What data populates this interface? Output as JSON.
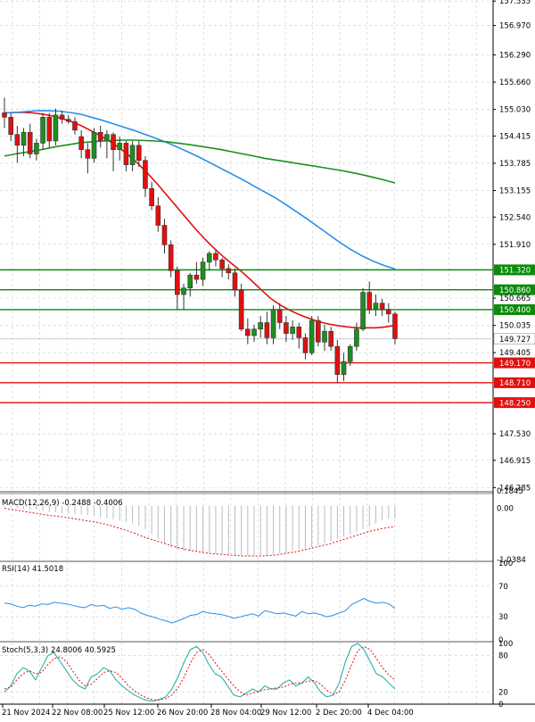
{
  "chart_data": {
    "type": "candlestick",
    "symbol_hint": "USDJPY H4",
    "price_axis": {
      "labels": [
        "157.535",
        "156.970",
        "156.290",
        "155.660",
        "155.030",
        "154.415",
        "153.785",
        "153.155",
        "152.540",
        "151.910",
        "151.320",
        "150.860",
        "150.665",
        "150.400",
        "150.035",
        "149.727",
        "149.405",
        "149.170",
        "148.710",
        "148.250",
        "147.530",
        "146.915",
        "146.285"
      ],
      "range": [
        146.21,
        157.56
      ]
    },
    "levels": [
      {
        "value": 151.32,
        "label": "151.320",
        "color": "#0b8a0b"
      },
      {
        "value": 150.86,
        "label": "150.860",
        "color": "#0b8a0b"
      },
      {
        "value": 150.4,
        "label": "150.400",
        "color": "#0b8a0b"
      },
      {
        "value": 149.17,
        "label": "149.170",
        "color": "#e01010"
      },
      {
        "value": 148.71,
        "label": "148.710",
        "color": "#e01010"
      },
      {
        "value": 148.25,
        "label": "148.250",
        "color": "#e01010"
      }
    ],
    "current_price": {
      "value": 149.727,
      "label": "149.727"
    },
    "time_labels": [
      "21 Nov 2024",
      "22 Nov 08:00",
      "25 Nov 12:00",
      "26 Nov 20:00",
      "28 Nov 04:00",
      "29 Nov 12:00",
      "2 Dec 20:00",
      "4 Dec 04:00"
    ],
    "candles": [
      {
        "o": 154.95,
        "h": 155.3,
        "l": 154.6,
        "c": 154.85
      },
      {
        "o": 154.85,
        "h": 154.95,
        "l": 154.3,
        "c": 154.45
      },
      {
        "o": 154.45,
        "h": 154.65,
        "l": 153.8,
        "c": 154.2
      },
      {
        "o": 154.2,
        "h": 154.6,
        "l": 153.95,
        "c": 154.5
      },
      {
        "o": 154.5,
        "h": 154.7,
        "l": 153.9,
        "c": 154.0
      },
      {
        "o": 154.0,
        "h": 154.35,
        "l": 153.85,
        "c": 154.25
      },
      {
        "o": 154.25,
        "h": 154.95,
        "l": 154.1,
        "c": 154.85
      },
      {
        "o": 154.85,
        "h": 154.95,
        "l": 154.15,
        "c": 154.3
      },
      {
        "o": 154.3,
        "h": 155.05,
        "l": 154.2,
        "c": 154.9
      },
      {
        "o": 154.9,
        "h": 155.0,
        "l": 154.7,
        "c": 154.8
      },
      {
        "o": 154.8,
        "h": 154.9,
        "l": 154.7,
        "c": 154.75
      },
      {
        "o": 154.75,
        "h": 154.85,
        "l": 154.45,
        "c": 154.55
      },
      {
        "o": 154.4,
        "h": 154.55,
        "l": 153.9,
        "c": 154.1
      },
      {
        "o": 154.1,
        "h": 154.25,
        "l": 153.55,
        "c": 153.9
      },
      {
        "o": 153.9,
        "h": 154.6,
        "l": 153.8,
        "c": 154.5
      },
      {
        "o": 154.5,
        "h": 154.65,
        "l": 154.15,
        "c": 154.3
      },
      {
        "o": 154.3,
        "h": 154.55,
        "l": 153.9,
        "c": 154.45
      },
      {
        "o": 154.45,
        "h": 154.5,
        "l": 153.6,
        "c": 154.1
      },
      {
        "o": 154.1,
        "h": 154.4,
        "l": 153.85,
        "c": 154.25
      },
      {
        "o": 154.25,
        "h": 154.3,
        "l": 153.6,
        "c": 153.75
      },
      {
        "o": 153.75,
        "h": 154.3,
        "l": 153.6,
        "c": 154.2
      },
      {
        "o": 154.2,
        "h": 154.3,
        "l": 153.7,
        "c": 153.85
      },
      {
        "o": 153.85,
        "h": 153.95,
        "l": 153.0,
        "c": 153.2
      },
      {
        "o": 153.2,
        "h": 153.35,
        "l": 152.7,
        "c": 152.8
      },
      {
        "o": 152.8,
        "h": 153.0,
        "l": 152.2,
        "c": 152.35
      },
      {
        "o": 152.35,
        "h": 152.5,
        "l": 151.7,
        "c": 151.9
      },
      {
        "o": 151.9,
        "h": 152.0,
        "l": 151.15,
        "c": 151.3
      },
      {
        "o": 151.3,
        "h": 151.4,
        "l": 150.4,
        "c": 150.75
      },
      {
        "o": 150.75,
        "h": 151.0,
        "l": 150.4,
        "c": 150.9
      },
      {
        "o": 150.9,
        "h": 151.25,
        "l": 150.7,
        "c": 151.2
      },
      {
        "o": 151.2,
        "h": 151.5,
        "l": 151.0,
        "c": 151.1
      },
      {
        "o": 151.1,
        "h": 151.6,
        "l": 150.95,
        "c": 151.5
      },
      {
        "o": 151.5,
        "h": 151.75,
        "l": 151.3,
        "c": 151.7
      },
      {
        "o": 151.7,
        "h": 151.8,
        "l": 151.4,
        "c": 151.55
      },
      {
        "o": 151.55,
        "h": 151.6,
        "l": 151.15,
        "c": 151.35
      },
      {
        "o": 151.35,
        "h": 151.45,
        "l": 151.1,
        "c": 151.25
      },
      {
        "o": 151.25,
        "h": 151.35,
        "l": 150.7,
        "c": 150.85
      },
      {
        "o": 150.85,
        "h": 151.0,
        "l": 149.9,
        "c": 149.95
      },
      {
        "o": 149.95,
        "h": 150.2,
        "l": 149.6,
        "c": 149.8
      },
      {
        "o": 149.8,
        "h": 150.05,
        "l": 149.65,
        "c": 149.95
      },
      {
        "o": 149.95,
        "h": 150.25,
        "l": 149.75,
        "c": 150.1
      },
      {
        "o": 150.1,
        "h": 150.35,
        "l": 149.6,
        "c": 149.75
      },
      {
        "o": 149.75,
        "h": 150.5,
        "l": 149.6,
        "c": 150.4
      },
      {
        "o": 150.4,
        "h": 150.55,
        "l": 149.95,
        "c": 150.1
      },
      {
        "o": 150.1,
        "h": 150.25,
        "l": 149.65,
        "c": 149.85
      },
      {
        "o": 149.85,
        "h": 150.15,
        "l": 149.7,
        "c": 150.0
      },
      {
        "o": 150.0,
        "h": 150.1,
        "l": 149.5,
        "c": 149.75
      },
      {
        "o": 149.75,
        "h": 149.85,
        "l": 149.25,
        "c": 149.4
      },
      {
        "o": 149.4,
        "h": 150.25,
        "l": 149.35,
        "c": 150.15
      },
      {
        "o": 150.15,
        "h": 150.25,
        "l": 149.55,
        "c": 149.65
      },
      {
        "o": 149.65,
        "h": 150.05,
        "l": 149.45,
        "c": 149.9
      },
      {
        "o": 149.9,
        "h": 150.0,
        "l": 149.45,
        "c": 149.55
      },
      {
        "o": 149.55,
        "h": 149.7,
        "l": 148.7,
        "c": 148.9
      },
      {
        "o": 148.9,
        "h": 149.4,
        "l": 148.75,
        "c": 149.2
      },
      {
        "o": 149.2,
        "h": 149.6,
        "l": 149.1,
        "c": 149.55
      },
      {
        "o": 149.55,
        "h": 150.1,
        "l": 149.45,
        "c": 149.95
      },
      {
        "o": 149.95,
        "h": 150.9,
        "l": 149.9,
        "c": 150.8
      },
      {
        "o": 150.8,
        "h": 151.05,
        "l": 150.3,
        "c": 150.4
      },
      {
        "o": 150.4,
        "h": 150.75,
        "l": 150.25,
        "c": 150.55
      },
      {
        "o": 150.55,
        "h": 150.65,
        "l": 150.25,
        "c": 150.4
      },
      {
        "o": 150.4,
        "h": 150.55,
        "l": 150.1,
        "c": 150.3
      },
      {
        "o": 150.3,
        "h": 150.35,
        "l": 149.6,
        "c": 149.73
      }
    ],
    "moving_averages": [
      {
        "color": "#e01010",
        "values": [
          154.95,
          154.96,
          154.96,
          154.95,
          154.92,
          154.88,
          154.82,
          154.75,
          154.66,
          154.55,
          154.43,
          154.3,
          154.15,
          153.98,
          153.78,
          153.56,
          153.32,
          153.06,
          152.8,
          152.54,
          152.28,
          152.04,
          151.82,
          151.62,
          151.44,
          151.26,
          151.06,
          150.85,
          150.65,
          150.5,
          150.38,
          150.28,
          150.2,
          150.12,
          150.07,
          150.03,
          150.0,
          149.98,
          149.98,
          149.98,
          150.0,
          150.04
        ]
      },
      {
        "color": "#2a8fe8",
        "values": [
          154.95,
          154.96,
          154.98,
          155.0,
          155.0,
          154.99,
          154.96,
          154.92,
          154.85,
          154.78,
          154.7,
          154.62,
          154.54,
          154.45,
          154.36,
          154.26,
          154.15,
          154.04,
          153.92,
          153.79,
          153.66,
          153.53,
          153.4,
          153.26,
          153.12,
          152.98,
          152.82,
          152.65,
          152.48,
          152.3,
          152.12,
          151.94,
          151.78,
          151.64,
          151.52,
          151.42,
          151.34
        ]
      },
      {
        "color": "#1d8f1d",
        "values": [
          153.95,
          154.0,
          154.04,
          154.08,
          154.13,
          154.18,
          154.22,
          154.26,
          154.28,
          154.3,
          154.31,
          154.32,
          154.32,
          154.31,
          154.3,
          154.28,
          154.25,
          154.22,
          154.18,
          154.14,
          154.1,
          154.05,
          154.0,
          153.95,
          153.9,
          153.86,
          153.82,
          153.78,
          153.74,
          153.7,
          153.66,
          153.62,
          153.57,
          153.52,
          153.46,
          153.4,
          153.33
        ]
      }
    ],
    "macd": {
      "label": "MACD(12,26,9) -0.2488 -0.4006",
      "scale_labels": [
        "0.1845",
        "0.00",
        "-1.0384"
      ],
      "range": [
        -1.0384,
        0.1845
      ],
      "hist": [
        -0.02,
        -0.04,
        -0.05,
        -0.06,
        -0.07,
        -0.08,
        -0.1,
        -0.12,
        -0.13,
        -0.14,
        -0.15,
        -0.16,
        -0.17,
        -0.18,
        -0.2,
        -0.22,
        -0.24,
        -0.26,
        -0.28,
        -0.31,
        -0.34,
        -0.38,
        -0.45,
        -0.55,
        -0.64,
        -0.72,
        -0.8,
        -0.85,
        -0.87,
        -0.88,
        -0.89,
        -0.9,
        -0.91,
        -0.92,
        -0.93,
        -0.94,
        -0.95,
        -0.96,
        -0.96,
        -0.96,
        -0.96,
        -0.95,
        -0.94,
        -0.92,
        -0.9,
        -0.87,
        -0.84,
        -0.82,
        -0.8,
        -0.76,
        -0.72,
        -0.68,
        -0.64,
        -0.6,
        -0.55,
        -0.5,
        -0.45,
        -0.4,
        -0.34,
        -0.28,
        -0.25,
        -0.25
      ],
      "signal": [
        -0.05,
        -0.07,
        -0.09,
        -0.11,
        -0.13,
        -0.15,
        -0.17,
        -0.19,
        -0.2,
        -0.22,
        -0.24,
        -0.26,
        -0.28,
        -0.3,
        -0.32,
        -0.35,
        -0.38,
        -0.42,
        -0.46,
        -0.5,
        -0.55,
        -0.6,
        -0.64,
        -0.68,
        -0.72,
        -0.76,
        -0.8,
        -0.83,
        -0.86,
        -0.88,
        -0.9,
        -0.92,
        -0.93,
        -0.94,
        -0.95,
        -0.96,
        -0.97,
        -0.97,
        -0.97,
        -0.97,
        -0.96,
        -0.95,
        -0.93,
        -0.91,
        -0.89,
        -0.86,
        -0.83,
        -0.8,
        -0.77,
        -0.74,
        -0.7,
        -0.66,
        -0.62,
        -0.58,
        -0.54,
        -0.5,
        -0.47,
        -0.44,
        -0.42,
        -0.4
      ]
    },
    "rsi": {
      "label": "RSI(14) 41.5018",
      "scale_labels": [
        "100",
        "70",
        "30",
        "0"
      ],
      "values": [
        48,
        47,
        44,
        42,
        45,
        44,
        47,
        46,
        49,
        48,
        47,
        45,
        43,
        42,
        46,
        44,
        45,
        41,
        43,
        40,
        42,
        40,
        35,
        32,
        30,
        27,
        25,
        22,
        25,
        28,
        32,
        33,
        37,
        35,
        34,
        33,
        31,
        28,
        30,
        32,
        34,
        31,
        38,
        36,
        34,
        35,
        33,
        31,
        37,
        34,
        35,
        33,
        30,
        32,
        35,
        38,
        46,
        50,
        54,
        50,
        48,
        49,
        47,
        41
      ]
    },
    "stochastic": {
      "label": "Stoch(5,3,3) 24.8006 40.5925",
      "scale_labels": [
        "100",
        "80",
        "20",
        "0"
      ],
      "k": [
        20,
        30,
        50,
        60,
        55,
        40,
        60,
        80,
        85,
        70,
        55,
        40,
        30,
        25,
        45,
        50,
        60,
        55,
        40,
        30,
        22,
        15,
        10,
        6,
        5,
        8,
        12,
        25,
        45,
        70,
        90,
        95,
        85,
        65,
        50,
        45,
        30,
        15,
        12,
        18,
        25,
        20,
        30,
        25,
        25,
        35,
        40,
        30,
        35,
        45,
        35,
        20,
        12,
        15,
        35,
        70,
        95,
        100,
        90,
        70,
        50,
        45,
        35,
        25
      ],
      "d": [
        25,
        28,
        40,
        50,
        55,
        50,
        52,
        65,
        75,
        78,
        70,
        55,
        40,
        30,
        33,
        42,
        52,
        55,
        52,
        42,
        30,
        22,
        15,
        10,
        7,
        7,
        9,
        15,
        27,
        45,
        68,
        85,
        90,
        82,
        68,
        55,
        42,
        30,
        20,
        15,
        18,
        21,
        24,
        25,
        27,
        28,
        33,
        35,
        35,
        38,
        39,
        33,
        23,
        16,
        20,
        40,
        65,
        88,
        95,
        90,
        75,
        60,
        48,
        40
      ]
    }
  }
}
